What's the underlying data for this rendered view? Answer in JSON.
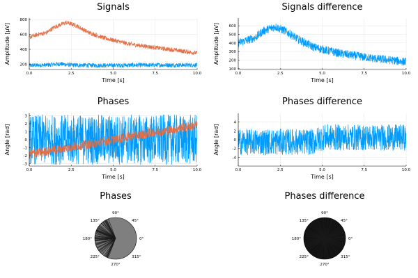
{
  "colors": {
    "series1": "#009AFA",
    "series2": "#E26F46",
    "polar_fill1": "#7F7F7F",
    "polar_fill2": "#111111"
  },
  "chart_data": [
    {
      "id": "signals",
      "type": "line",
      "title": "Signals",
      "xlabel": "Time [s]",
      "ylabel": "Amplitude [μV]",
      "xlim": [
        0,
        10
      ],
      "ylim": [
        130,
        820
      ],
      "xticks": [
        "0.0",
        "2.5",
        "5.0",
        "7.5",
        "10.0"
      ],
      "xtick_values": [
        0,
        2.5,
        5,
        7.5,
        10
      ],
      "yticks": [
        "200",
        "400",
        "600",
        "800"
      ],
      "ytick_values": [
        200,
        400,
        600,
        800
      ],
      "grid": true,
      "series": [
        {
          "color": "#009AFA",
          "noise": 30,
          "points": [
            [
              0,
              185
            ],
            [
              1,
              190
            ],
            [
              1.8,
              205
            ],
            [
              2.5,
              190
            ],
            [
              4,
              185
            ],
            [
              6,
              188
            ],
            [
              8,
              190
            ],
            [
              10,
              190
            ]
          ]
        },
        {
          "color": "#E26F46",
          "noise": 30,
          "points": [
            [
              0,
              560
            ],
            [
              0.5,
              600
            ],
            [
              1,
              620
            ],
            [
              1.5,
              700
            ],
            [
              2.2,
              760
            ],
            [
              2.8,
              720
            ],
            [
              3.5,
              630
            ],
            [
              4.5,
              550
            ],
            [
              6,
              470
            ],
            [
              8,
              410
            ],
            [
              10,
              350
            ]
          ]
        }
      ]
    },
    {
      "id": "signals-difference",
      "type": "line",
      "title": "Signals difference",
      "xlabel": "Time [s]",
      "ylabel": "Amplitude [μV]",
      "xlim": [
        0,
        10
      ],
      "ylim": [
        90,
        690
      ],
      "xticks": [
        "0.0",
        "2.5",
        "5.0",
        "7.5",
        "10.0"
      ],
      "xtick_values": [
        0,
        2.5,
        5,
        7.5,
        10
      ],
      "yticks": [
        "100",
        "200",
        "300",
        "400",
        "500",
        "600"
      ],
      "ytick_values": [
        100,
        200,
        300,
        400,
        500,
        600
      ],
      "grid": true,
      "series": [
        {
          "color": "#009AFA",
          "noise": 50,
          "points": [
            [
              0,
              400
            ],
            [
              0.5,
              430
            ],
            [
              1,
              460
            ],
            [
              1.5,
              540
            ],
            [
              2.2,
              590
            ],
            [
              2.8,
              540
            ],
            [
              3.5,
              450
            ],
            [
              4.5,
              350
            ],
            [
              6,
              280
            ],
            [
              8,
              220
            ],
            [
              10,
              180
            ]
          ]
        }
      ]
    },
    {
      "id": "phases",
      "type": "line",
      "title": "Phases",
      "xlabel": "Time [s]",
      "ylabel": "Angle [rad]",
      "xlim": [
        0,
        10
      ],
      "ylim": [
        -3.3,
        3.3
      ],
      "xticks": [
        "0.0",
        "2.5",
        "5.0",
        "7.5",
        "10.0"
      ],
      "xtick_values": [
        0,
        2.5,
        5,
        7.5,
        10
      ],
      "yticks": [
        "-3",
        "-2",
        "-1",
        "0",
        "1",
        "2",
        "3"
      ],
      "ytick_values": [
        -3,
        -2,
        -1,
        0,
        1,
        2,
        3
      ],
      "grid": true,
      "series": [
        {
          "color": "#009AFA",
          "noise": 3.14,
          "points": [
            [
              0,
              0
            ],
            [
              10,
              0
            ]
          ]
        },
        {
          "color": "#E26F46",
          "noise": 0.6,
          "points": [
            [
              0,
              -1.8
            ],
            [
              2,
              -1.1
            ],
            [
              4,
              -0.4
            ],
            [
              6,
              0.4
            ],
            [
              8,
              1.1
            ],
            [
              10,
              1.8
            ]
          ]
        }
      ]
    },
    {
      "id": "phases-difference",
      "type": "line",
      "title": "Phases difference",
      "xlabel": "Time [s]",
      "ylabel": "Angle [rad]",
      "xlim": [
        0,
        10
      ],
      "ylim": [
        -6,
        6
      ],
      "xticks": [
        "0.0",
        "2.5",
        "5.0",
        "7.5",
        "10.0"
      ],
      "xtick_values": [
        0,
        2.5,
        5,
        7.5,
        10
      ],
      "yticks": [
        "-4",
        "-2",
        "0",
        "2",
        "4"
      ],
      "ytick_values": [
        -4,
        -2,
        0,
        2,
        4
      ],
      "grid": true,
      "series": [
        {
          "color": "#009AFA",
          "noise": 3,
          "points": [
            [
              0,
              -0.5
            ],
            [
              4.5,
              -0.5
            ],
            [
              5,
              0.5
            ],
            [
              10,
              0.5
            ]
          ]
        }
      ]
    },
    {
      "id": "phases-polar",
      "type": "polar",
      "title": "Phases",
      "angle_labels": [
        "0°",
        "45°",
        "90°",
        "135°",
        "180°",
        "225°",
        "270°",
        "315°"
      ],
      "angle_values": [
        0,
        45,
        90,
        135,
        180,
        225,
        270,
        315
      ],
      "fill_color": "#7F7F7F",
      "dark_sector_deg": [
        110,
        250
      ]
    },
    {
      "id": "phases-difference-polar",
      "type": "polar",
      "title": "Phases difference",
      "angle_labels": [
        "0°",
        "45°",
        "90°",
        "135°",
        "180°",
        "225°",
        "270°",
        "315°"
      ],
      "angle_values": [
        0,
        45,
        90,
        135,
        180,
        225,
        270,
        315
      ],
      "fill_color": "#111111",
      "dark_sector_deg": [
        0,
        360
      ]
    }
  ]
}
